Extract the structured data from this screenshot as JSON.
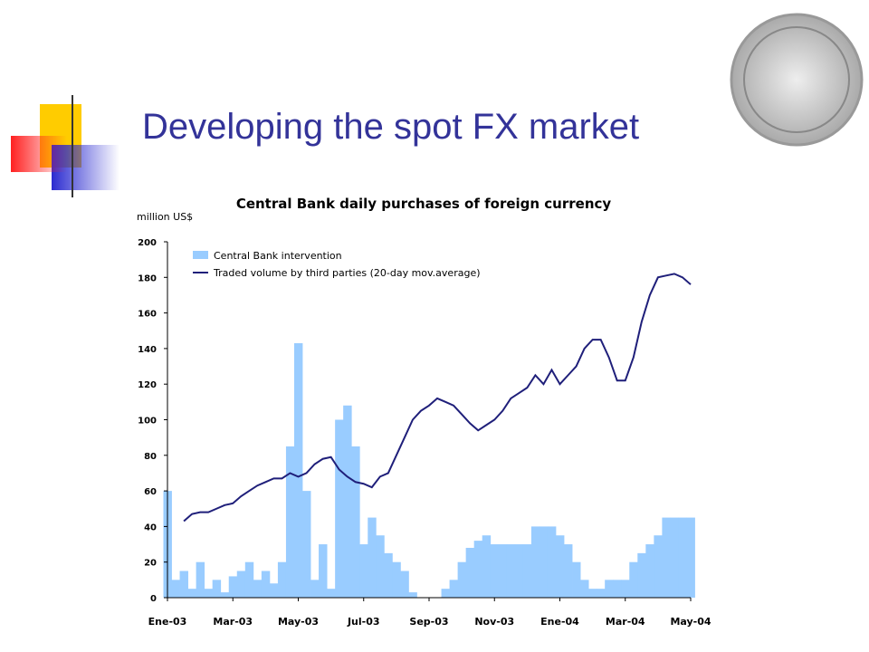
{
  "slide": {
    "title": "Developing the spot FX market"
  },
  "chart_data": {
    "type": "bar-line",
    "title": "Central Bank daily purchases of foreign currency",
    "y_label": "million US$",
    "categories": [
      "Ene-03",
      null,
      null,
      null,
      null,
      null,
      null,
      null,
      "Mar-03",
      null,
      null,
      null,
      null,
      null,
      null,
      null,
      "May-03",
      null,
      null,
      null,
      null,
      null,
      null,
      null,
      "Jul-03",
      null,
      null,
      null,
      null,
      null,
      null,
      null,
      "Sep-03",
      null,
      null,
      null,
      null,
      null,
      null,
      null,
      "Nov-03",
      null,
      null,
      null,
      null,
      null,
      null,
      null,
      "Ene-04",
      null,
      null,
      null,
      null,
      null,
      null,
      null,
      "Mar-04",
      null,
      null,
      null,
      null,
      null,
      null,
      null,
      "May-04"
    ],
    "series": [
      {
        "name": "Central Bank intervention",
        "type": "bar",
        "color": "#99ccff",
        "values": [
          60,
          10,
          15,
          5,
          20,
          5,
          10,
          3,
          12,
          15,
          20,
          10,
          15,
          8,
          20,
          85,
          143,
          60,
          10,
          30,
          5,
          100,
          108,
          85,
          30,
          45,
          35,
          25,
          20,
          15,
          3,
          0,
          0,
          0,
          5,
          10,
          20,
          28,
          32,
          35,
          30,
          30,
          30,
          30,
          30,
          40,
          40,
          40,
          35,
          30,
          20,
          10,
          5,
          5,
          10,
          10,
          10,
          20,
          25,
          30,
          35,
          45,
          45,
          45,
          45
        ]
      },
      {
        "name": "Traded volume by third parties (20-day mov.average)",
        "type": "line",
        "color": "#1f1f7a",
        "values": [
          null,
          null,
          43,
          47,
          48,
          48,
          50,
          52,
          53,
          57,
          60,
          63,
          65,
          67,
          67,
          70,
          68,
          70,
          75,
          78,
          79,
          72,
          68,
          65,
          64,
          62,
          68,
          70,
          80,
          90,
          100,
          105,
          108,
          112,
          110,
          108,
          103,
          98,
          94,
          97,
          100,
          105,
          112,
          115,
          118,
          125,
          120,
          128,
          120,
          125,
          130,
          140,
          145,
          145,
          135,
          122,
          122,
          135,
          155,
          170,
          180,
          181,
          182,
          180,
          176
        ]
      }
    ],
    "ylim": [
      0,
      200
    ],
    "yticks": [
      0,
      20,
      40,
      60,
      80,
      100,
      120,
      140,
      160,
      180,
      200
    ]
  }
}
